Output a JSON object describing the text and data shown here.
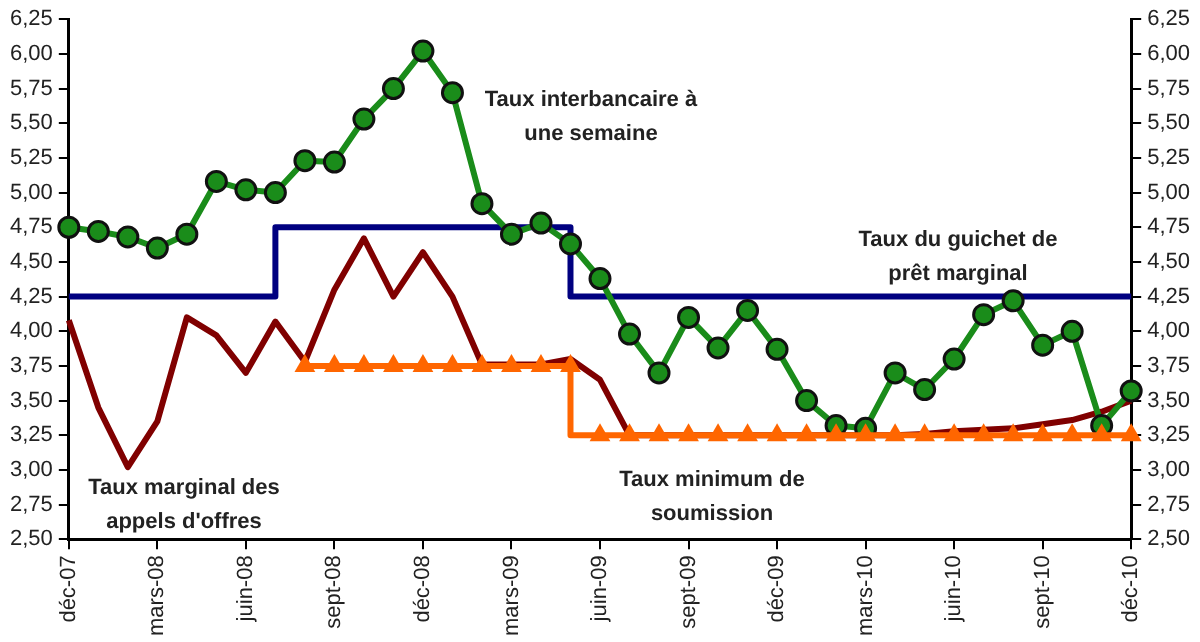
{
  "chart_data": {
    "type": "line",
    "categories": [
      "déc-07",
      null,
      null,
      "mars-08",
      null,
      null,
      "juin-08",
      null,
      null,
      "sept-08",
      null,
      null,
      "déc-08",
      null,
      null,
      "mars-09",
      null,
      null,
      "juin-09",
      null,
      null,
      "sept-09",
      null,
      null,
      "déc-09",
      null,
      null,
      "mars-10",
      null,
      null,
      "juin-10",
      null,
      null,
      "sept-10",
      null,
      null,
      "déc-10"
    ],
    "series": [
      {
        "name": "Taux interbancaire à une semaine",
        "color": "#1a8c1a",
        "marker": "circle",
        "values": [
          4.75,
          4.72,
          4.68,
          4.6,
          4.7,
          5.08,
          5.02,
          5.0,
          5.23,
          5.22,
          5.53,
          5.75,
          6.02,
          5.72,
          4.92,
          4.7,
          4.78,
          4.63,
          4.38,
          3.98,
          3.7,
          4.1,
          3.88,
          4.15,
          3.87,
          3.5,
          3.32,
          3.3,
          3.7,
          3.58,
          3.8,
          4.12,
          4.22,
          3.9,
          4.0,
          3.32,
          3.57
        ]
      },
      {
        "name": "Taux du guichet de prêt marginal",
        "type": "step",
        "color": "#000080",
        "marker": "none",
        "values": [
          4.25,
          4.25,
          4.25,
          4.25,
          4.25,
          4.25,
          4.25,
          4.25,
          4.75,
          4.75,
          4.75,
          4.75,
          4.75,
          4.75,
          4.75,
          4.75,
          4.75,
          4.75,
          4.25,
          4.25,
          4.25,
          4.25,
          4.25,
          4.25,
          4.25,
          4.25,
          4.25,
          4.25,
          4.25,
          4.25,
          4.25,
          4.25,
          4.25,
          4.25,
          4.25,
          4.25,
          4.25
        ]
      },
      {
        "name": "Taux marginal des appels d'offres",
        "color": "#800000",
        "marker": "none",
        "values": [
          4.08,
          3.45,
          3.02,
          3.35,
          4.1,
          3.97,
          3.7,
          4.07,
          3.78,
          4.3,
          4.67,
          4.25,
          4.57,
          4.25,
          3.76,
          3.76,
          3.76,
          3.8,
          3.65,
          3.25,
          3.25,
          3.25,
          3.25,
          3.25,
          3.25,
          3.25,
          3.25,
          3.25,
          3.25,
          3.26,
          3.28,
          3.29,
          3.3,
          3.33,
          3.36,
          3.42,
          3.5
        ]
      },
      {
        "name": "Taux minimum de soumission",
        "type": "step",
        "color": "#ff6600",
        "marker": "triangle",
        "values": [
          null,
          null,
          null,
          null,
          null,
          null,
          null,
          null,
          3.75,
          3.75,
          3.75,
          3.75,
          3.75,
          3.75,
          3.75,
          3.75,
          3.75,
          3.75,
          3.25,
          3.25,
          3.25,
          3.25,
          3.25,
          3.25,
          3.25,
          3.25,
          3.25,
          3.25,
          3.25,
          3.25,
          3.25,
          3.25,
          3.25,
          3.25,
          3.25,
          3.25,
          3.25
        ]
      }
    ],
    "ylim": [
      2.5,
      6.25
    ],
    "yticks": [
      {
        "value": 2.5,
        "label": "2,50"
      },
      {
        "value": 2.75,
        "label": "2,75"
      },
      {
        "value": 3,
        "label": "3,00"
      },
      {
        "value": 3.25,
        "label": "3,25"
      },
      {
        "value": 3.5,
        "label": "3,50"
      },
      {
        "value": 3.75,
        "label": "3,75"
      },
      {
        "value": 4,
        "label": "4,00"
      },
      {
        "value": 4.25,
        "label": "4,25"
      },
      {
        "value": 4.5,
        "label": "4,50"
      },
      {
        "value": 4.75,
        "label": "4,75"
      },
      {
        "value": 5,
        "label": "5,00"
      },
      {
        "value": 5.25,
        "label": "5,25"
      },
      {
        "value": 5.5,
        "label": "5,50"
      },
      {
        "value": 5.75,
        "label": "5,75"
      },
      {
        "value": 6,
        "label": "6,00"
      },
      {
        "value": 6.25,
        "label": "6,25"
      }
    ],
    "y2lim": [
      2.5,
      6.25
    ],
    "y2ticks": [
      {
        "value": 2.5,
        "label": "2,50"
      },
      {
        "value": 2.75,
        "label": "2,75"
      },
      {
        "value": 3,
        "label": "3,00"
      },
      {
        "value": 3.25,
        "label": "3,25"
      },
      {
        "value": 3.5,
        "label": "3,50"
      },
      {
        "value": 3.75,
        "label": "3,75"
      },
      {
        "value": 4,
        "label": "4,00"
      },
      {
        "value": 4.25,
        "label": "4,25"
      },
      {
        "value": 4.5,
        "label": "4,50"
      },
      {
        "value": 4.75,
        "label": "4,75"
      },
      {
        "value": 5,
        "label": "5,00"
      },
      {
        "value": 5.25,
        "label": "5,25"
      },
      {
        "value": 5.5,
        "label": "5,50"
      },
      {
        "value": 5.75,
        "label": "5,75"
      },
      {
        "value": 6,
        "label": "6,00"
      },
      {
        "value": 6.25,
        "label": "6,25"
      }
    ],
    "grid": false,
    "legend": false
  }
}
